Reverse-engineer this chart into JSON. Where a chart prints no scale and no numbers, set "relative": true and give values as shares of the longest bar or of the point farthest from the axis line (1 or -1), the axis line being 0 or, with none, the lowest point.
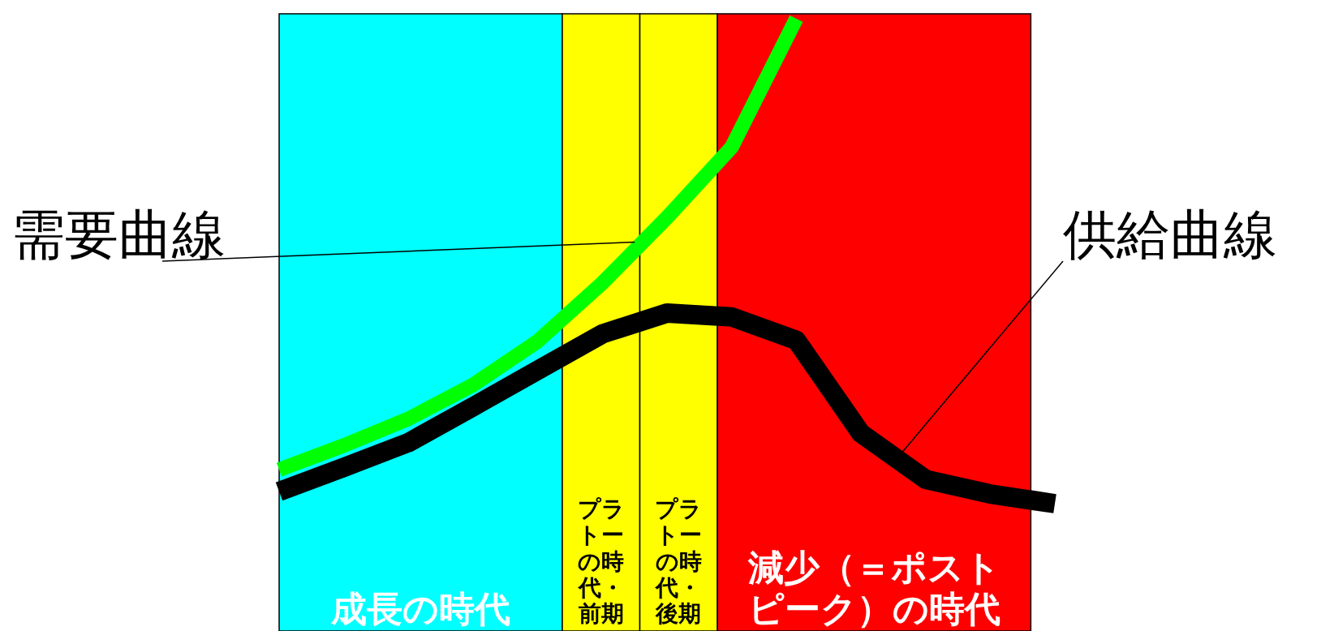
{
  "chart_data": {
    "type": "line",
    "relative": true,
    "tick_labels": false,
    "categories": [
      null,
      null,
      null,
      null,
      null,
      null,
      null,
      null,
      null,
      null,
      null,
      null,
      null
    ],
    "series": [
      {
        "name": "需要曲線",
        "color": "#00ff00",
        "values": [
          0.07,
          0.12,
          0.175,
          0.245,
          0.335,
          0.455,
          0.59,
          0.735,
          1.0,
          null,
          null,
          null,
          null
        ]
      },
      {
        "name": "供給曲線",
        "color": "#000000",
        "values": [
          0.025,
          0.075,
          0.126,
          0.2,
          0.275,
          0.35,
          0.393,
          0.385,
          0.337,
          0.145,
          0.05,
          0.02,
          0
        ]
      }
    ],
    "annotations": [
      "成長の時代",
      "プラトーの時代・前期",
      "プラトーの時代・後期",
      "減少（＝ポストピーク）の時代"
    ]
  }
}
